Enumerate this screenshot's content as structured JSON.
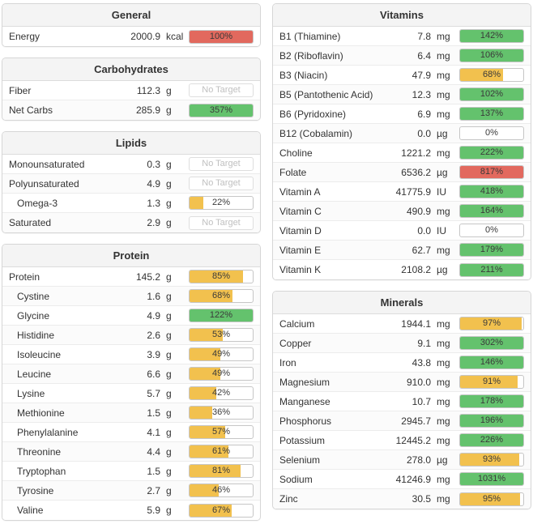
{
  "palette": {
    "green": "#64c26d",
    "yellow": "#f2c14e",
    "red": "#e2695e",
    "empty": "#ffffff"
  },
  "no_target_label": "No Target",
  "columns": {
    "left": [
      {
        "title": "General",
        "rows": [
          {
            "label": "Energy",
            "value": "2000.9",
            "unit": "kcal",
            "bar": {
              "text": "100%",
              "fill": 100,
              "color": "red"
            }
          }
        ]
      },
      {
        "title": "Carbohydrates",
        "rows": [
          {
            "label": "Fiber",
            "value": "112.3",
            "unit": "g",
            "no_target": "No Target"
          },
          {
            "label": "Net Carbs",
            "value": "285.9",
            "unit": "g",
            "bar": {
              "text": "357%",
              "fill": 100,
              "color": "green"
            }
          }
        ]
      },
      {
        "title": "Lipids",
        "rows": [
          {
            "label": "Monounsaturated",
            "value": "0.3",
            "unit": "g",
            "no_target": "No Target"
          },
          {
            "label": "Polyunsaturated",
            "value": "4.9",
            "unit": "g",
            "no_target": "No Target"
          },
          {
            "label": "Omega-3",
            "value": "1.3",
            "unit": "g",
            "indent": true,
            "bar": {
              "text": "22%",
              "fill": 22,
              "color": "yellow"
            }
          },
          {
            "label": "Saturated",
            "value": "2.9",
            "unit": "g",
            "no_target": "No Target"
          }
        ]
      },
      {
        "title": "Protein",
        "rows": [
          {
            "label": "Protein",
            "value": "145.2",
            "unit": "g",
            "bar": {
              "text": "85%",
              "fill": 85,
              "color": "yellow"
            }
          },
          {
            "label": "Cystine",
            "value": "1.6",
            "unit": "g",
            "indent": true,
            "bar": {
              "text": "68%",
              "fill": 68,
              "color": "yellow"
            }
          },
          {
            "label": "Glycine",
            "value": "4.9",
            "unit": "g",
            "indent": true,
            "bar": {
              "text": "122%",
              "fill": 100,
              "color": "green"
            }
          },
          {
            "label": "Histidine",
            "value": "2.6",
            "unit": "g",
            "indent": true,
            "bar": {
              "text": "53%",
              "fill": 53,
              "color": "yellow"
            }
          },
          {
            "label": "Isoleucine",
            "value": "3.9",
            "unit": "g",
            "indent": true,
            "bar": {
              "text": "49%",
              "fill": 49,
              "color": "yellow"
            }
          },
          {
            "label": "Leucine",
            "value": "6.6",
            "unit": "g",
            "indent": true,
            "bar": {
              "text": "49%",
              "fill": 49,
              "color": "yellow"
            }
          },
          {
            "label": "Lysine",
            "value": "5.7",
            "unit": "g",
            "indent": true,
            "bar": {
              "text": "42%",
              "fill": 42,
              "color": "yellow"
            }
          },
          {
            "label": "Methionine",
            "value": "1.5",
            "unit": "g",
            "indent": true,
            "bar": {
              "text": "36%",
              "fill": 36,
              "color": "yellow"
            }
          },
          {
            "label": "Phenylalanine",
            "value": "4.1",
            "unit": "g",
            "indent": true,
            "bar": {
              "text": "57%",
              "fill": 57,
              "color": "yellow"
            }
          },
          {
            "label": "Threonine",
            "value": "4.4",
            "unit": "g",
            "indent": true,
            "bar": {
              "text": "61%",
              "fill": 61,
              "color": "yellow"
            }
          },
          {
            "label": "Tryptophan",
            "value": "1.5",
            "unit": "g",
            "indent": true,
            "bar": {
              "text": "81%",
              "fill": 81,
              "color": "yellow"
            }
          },
          {
            "label": "Tyrosine",
            "value": "2.7",
            "unit": "g",
            "indent": true,
            "bar": {
              "text": "46%",
              "fill": 46,
              "color": "yellow"
            }
          },
          {
            "label": "Valine",
            "value": "5.9",
            "unit": "g",
            "indent": true,
            "bar": {
              "text": "67%",
              "fill": 67,
              "color": "yellow"
            }
          }
        ]
      }
    ],
    "right": [
      {
        "title": "Vitamins",
        "rows": [
          {
            "label": "B1 (Thiamine)",
            "value": "7.8",
            "unit": "mg",
            "bar": {
              "text": "142%",
              "fill": 100,
              "color": "green"
            }
          },
          {
            "label": "B2 (Riboflavin)",
            "value": "6.4",
            "unit": "mg",
            "bar": {
              "text": "106%",
              "fill": 100,
              "color": "green"
            }
          },
          {
            "label": "B3 (Niacin)",
            "value": "47.9",
            "unit": "mg",
            "bar": {
              "text": "68%",
              "fill": 68,
              "color": "yellow"
            }
          },
          {
            "label": "B5 (Pantothenic Acid)",
            "value": "12.3",
            "unit": "mg",
            "bar": {
              "text": "102%",
              "fill": 100,
              "color": "green"
            }
          },
          {
            "label": "B6 (Pyridoxine)",
            "value": "6.9",
            "unit": "mg",
            "bar": {
              "text": "137%",
              "fill": 100,
              "color": "green"
            }
          },
          {
            "label": "B12 (Cobalamin)",
            "value": "0.0",
            "unit": "µg",
            "bar": {
              "text": "0%",
              "fill": 0,
              "color": "empty"
            }
          },
          {
            "label": "Choline",
            "value": "1221.2",
            "unit": "mg",
            "bar": {
              "text": "222%",
              "fill": 100,
              "color": "green"
            }
          },
          {
            "label": "Folate",
            "value": "6536.2",
            "unit": "µg",
            "bar": {
              "text": "817%",
              "fill": 100,
              "color": "red"
            }
          },
          {
            "label": "Vitamin A",
            "value": "41775.9",
            "unit": "IU",
            "bar": {
              "text": "418%",
              "fill": 100,
              "color": "green"
            }
          },
          {
            "label": "Vitamin C",
            "value": "490.9",
            "unit": "mg",
            "bar": {
              "text": "164%",
              "fill": 100,
              "color": "green"
            }
          },
          {
            "label": "Vitamin D",
            "value": "0.0",
            "unit": "IU",
            "bar": {
              "text": "0%",
              "fill": 0,
              "color": "empty"
            }
          },
          {
            "label": "Vitamin E",
            "value": "62.7",
            "unit": "mg",
            "bar": {
              "text": "179%",
              "fill": 100,
              "color": "green"
            }
          },
          {
            "label": "Vitamin K",
            "value": "2108.2",
            "unit": "µg",
            "bar": {
              "text": "211%",
              "fill": 100,
              "color": "green"
            }
          }
        ]
      },
      {
        "title": "Minerals",
        "rows": [
          {
            "label": "Calcium",
            "value": "1944.1",
            "unit": "mg",
            "bar": {
              "text": "97%",
              "fill": 97,
              "color": "yellow"
            }
          },
          {
            "label": "Copper",
            "value": "9.1",
            "unit": "mg",
            "bar": {
              "text": "302%",
              "fill": 100,
              "color": "green"
            }
          },
          {
            "label": "Iron",
            "value": "43.8",
            "unit": "mg",
            "bar": {
              "text": "146%",
              "fill": 100,
              "color": "green"
            }
          },
          {
            "label": "Magnesium",
            "value": "910.0",
            "unit": "mg",
            "bar": {
              "text": "91%",
              "fill": 91,
              "color": "yellow"
            }
          },
          {
            "label": "Manganese",
            "value": "10.7",
            "unit": "mg",
            "bar": {
              "text": "178%",
              "fill": 100,
              "color": "green"
            }
          },
          {
            "label": "Phosphorus",
            "value": "2945.7",
            "unit": "mg",
            "bar": {
              "text": "196%",
              "fill": 100,
              "color": "green"
            }
          },
          {
            "label": "Potassium",
            "value": "12445.2",
            "unit": "mg",
            "bar": {
              "text": "226%",
              "fill": 100,
              "color": "green"
            }
          },
          {
            "label": "Selenium",
            "value": "278.0",
            "unit": "µg",
            "bar": {
              "text": "93%",
              "fill": 93,
              "color": "yellow"
            }
          },
          {
            "label": "Sodium",
            "value": "41246.9",
            "unit": "mg",
            "bar": {
              "text": "1031%",
              "fill": 100,
              "color": "green"
            }
          },
          {
            "label": "Zinc",
            "value": "30.5",
            "unit": "mg",
            "bar": {
              "text": "95%",
              "fill": 95,
              "color": "yellow"
            }
          }
        ]
      }
    ]
  }
}
